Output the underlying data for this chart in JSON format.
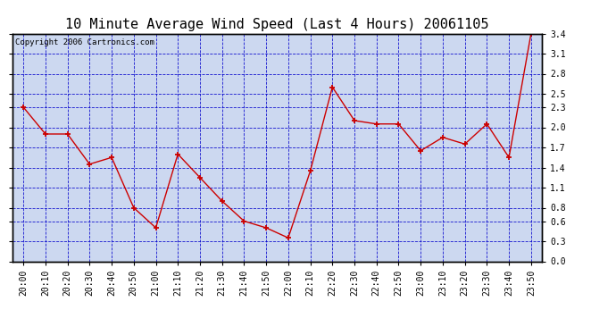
{
  "title": "10 Minute Average Wind Speed (Last 4 Hours) 20061105",
  "copyright": "Copyright 2006 Cartronics.com",
  "x_labels": [
    "20:00",
    "20:10",
    "20:20",
    "20:30",
    "20:40",
    "20:50",
    "21:00",
    "21:10",
    "21:20",
    "21:30",
    "21:40",
    "21:50",
    "22:00",
    "22:10",
    "22:20",
    "22:30",
    "22:40",
    "22:50",
    "23:00",
    "23:10",
    "23:20",
    "23:30",
    "23:40",
    "23:50"
  ],
  "y_values": [
    2.3,
    1.9,
    1.9,
    1.45,
    1.55,
    0.8,
    0.5,
    1.6,
    1.25,
    0.9,
    0.6,
    0.5,
    0.35,
    1.35,
    2.6,
    2.1,
    2.05,
    2.05,
    1.65,
    1.85,
    1.75,
    2.05,
    1.55,
    3.4
  ],
  "line_color": "#cc0000",
  "marker_color": "#cc0000",
  "plot_bg_color": "#ccd8f0",
  "grid_color": "#0000cc",
  "border_color": "#000000",
  "ylim": [
    0.0,
    3.4
  ],
  "yticks": [
    0.0,
    0.3,
    0.6,
    0.8,
    1.1,
    1.4,
    1.7,
    2.0,
    2.3,
    2.5,
    2.8,
    3.1,
    3.4
  ],
  "title_fontsize": 11,
  "copyright_fontsize": 6.5,
  "tick_fontsize": 7,
  "figure_bg": "#ffffff"
}
